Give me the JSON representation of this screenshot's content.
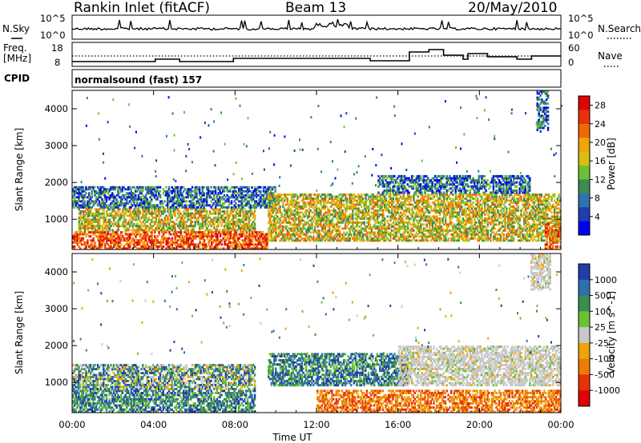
{
  "header": {
    "station": "Rankin Inlet (fitACF)",
    "beam": "Beam 13",
    "date": "20/May/2010"
  },
  "nsky_panel": {
    "left_label": "N.Sky",
    "y_ticks": [
      "10^5",
      "10^0"
    ],
    "right_ticks": [
      "10^5",
      "10^0"
    ],
    "right_label": "N.Search",
    "right_legend_line": "dotted"
  },
  "freq_panel": {
    "left_label_line1": "Freq.",
    "left_label_line2": "[MHz]",
    "y_ticks": [
      "18",
      "8"
    ],
    "right_ticks": [
      "60",
      "0"
    ],
    "right_label": "Nave",
    "right_legend_line": "dotted"
  },
  "cpid_panel": {
    "left_label": "CPID",
    "text": "normalsound (fast) 157"
  },
  "chart_data": [
    {
      "type": "heatmap",
      "title": "",
      "xlabel": "",
      "ylabel": "Slant Range [km]",
      "x_ticks": [
        "00:00",
        "04:00",
        "08:00",
        "12:00",
        "16:00",
        "20:00",
        "00:00"
      ],
      "y_ticks": [
        1000,
        2000,
        3000,
        4000
      ],
      "ylim": [
        180,
        4500
      ],
      "xlim_hours": [
        0,
        24
      ],
      "colorbar": {
        "label": "Power [dB]",
        "tick_labels": [
          4,
          8,
          12,
          16,
          20,
          24,
          28
        ],
        "range": [
          0,
          30
        ],
        "colors": [
          "#0000ee",
          "#1c3fae",
          "#2e73b0",
          "#3b8c4e",
          "#6cc037",
          "#d6c10e",
          "#f0a30a",
          "#ee6a08",
          "#e8320a",
          "#dd0505"
        ]
      },
      "bands": [
        {
          "t0": 0,
          "t1": 9.6,
          "r0": 180,
          "r1": 680,
          "level": "high"
        },
        {
          "t0": 0.3,
          "t1": 9.0,
          "r0": 680,
          "r1": 1300,
          "level": "mid"
        },
        {
          "t0": 0,
          "t1": 10.0,
          "r0": 1300,
          "r1": 1900,
          "level": "low"
        },
        {
          "t0": 9.6,
          "t1": 24,
          "r0": 400,
          "r1": 1700,
          "level": "mid"
        },
        {
          "t0": 15.0,
          "t1": 22.5,
          "r0": 1700,
          "r1": 2200,
          "level": "low"
        },
        {
          "t0": 23.2,
          "t1": 24,
          "r0": 180,
          "r1": 900,
          "level": "high"
        },
        {
          "t0": 22.8,
          "t1": 23.4,
          "r0": 3400,
          "r1": 4500,
          "level": "low"
        }
      ]
    },
    {
      "type": "heatmap",
      "title": "",
      "xlabel": "Time UT",
      "ylabel": "Slant Range [km]",
      "x_ticks": [
        "00:00",
        "04:00",
        "08:00",
        "12:00",
        "16:00",
        "20:00",
        "00:00"
      ],
      "y_ticks": [
        1000,
        2000,
        3000,
        4000
      ],
      "ylim": [
        180,
        4500
      ],
      "xlim_hours": [
        0,
        24
      ],
      "colorbar": {
        "label": "Velocity [m s^-1]",
        "tick_labels": [
          1000,
          500,
          100,
          25,
          -25,
          -100,
          -500,
          -1000
        ],
        "range": [
          -1200,
          1200
        ],
        "colors": [
          "#1f3ea8",
          "#2e6fb2",
          "#3b8c4e",
          "#6cc037",
          "#c8c8c8",
          "#f0a30a",
          "#ee7a08",
          "#e8320a",
          "#dd0505"
        ]
      },
      "bands": [
        {
          "t0": 0,
          "t1": 9.0,
          "r0": 180,
          "r1": 800,
          "level": "positive"
        },
        {
          "t0": 0,
          "t1": 9.0,
          "r0": 800,
          "r1": 1500,
          "level": "mixed"
        },
        {
          "t0": 9.6,
          "t1": 16.5,
          "r0": 900,
          "r1": 1800,
          "level": "positive"
        },
        {
          "t0": 12.0,
          "t1": 24,
          "r0": 180,
          "r1": 800,
          "level": "negative"
        },
        {
          "t0": 16.0,
          "t1": 24,
          "r0": 900,
          "r1": 2000,
          "level": "zero"
        },
        {
          "t0": 22.5,
          "t1": 23.5,
          "r0": 3500,
          "r1": 4500,
          "level": "zero"
        }
      ]
    }
  ]
}
